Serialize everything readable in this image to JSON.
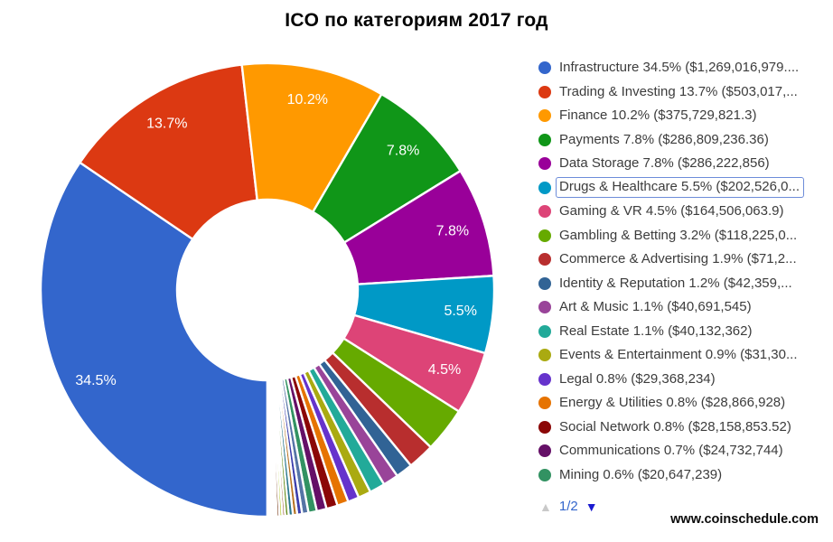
{
  "title": "ICO по категориям 2017 год",
  "chart_data": {
    "type": "pie",
    "donut": true,
    "start_angle_deg": 180,
    "direction": "clockwise",
    "slice_label_min_pct": 4.0,
    "slice_label_color": "#ffffff",
    "slices": [
      {
        "name": "Infrastructure",
        "pct": 34.5,
        "amount": "$1,269,016,979....",
        "legend_text": "Infrastructure 34.5% ($1,269,016,979....",
        "color": "#3366CC",
        "selected": false
      },
      {
        "name": "Trading & Investing",
        "pct": 13.7,
        "amount": "$503,017,...",
        "legend_text": "Trading & Investing 13.7% ($503,017,...",
        "color": "#DC3912",
        "selected": false
      },
      {
        "name": "Finance",
        "pct": 10.2,
        "amount": "$375,729,821.3",
        "legend_text": "Finance 10.2% ($375,729,821.3)",
        "color": "#FF9900",
        "selected": false
      },
      {
        "name": "Payments",
        "pct": 7.8,
        "amount": "$286,809,236.36",
        "legend_text": "Payments 7.8% ($286,809,236.36)",
        "color": "#109618",
        "selected": false
      },
      {
        "name": "Data Storage",
        "pct": 7.8,
        "amount": "$286,222,856",
        "legend_text": "Data Storage 7.8% ($286,222,856)",
        "color": "#990099",
        "selected": false
      },
      {
        "name": "Drugs & Healthcare",
        "pct": 5.5,
        "amount": "$202,526,0...",
        "legend_text": "Drugs & Healthcare 5.5% ($202,526,0...",
        "color": "#0099C6",
        "selected": true
      },
      {
        "name": "Gaming & VR",
        "pct": 4.5,
        "amount": "$164,506,063.9",
        "legend_text": "Gaming & VR 4.5% ($164,506,063.9)",
        "color": "#DD4477",
        "selected": false
      },
      {
        "name": "Gambling & Betting",
        "pct": 3.2,
        "amount": "$118,225,0...",
        "legend_text": "Gambling & Betting 3.2% ($118,225,0...",
        "color": "#66AA00",
        "selected": false
      },
      {
        "name": "Commerce & Advertising",
        "pct": 1.9,
        "amount": "$71,2...",
        "legend_text": "Commerce & Advertising 1.9% ($71,2...",
        "color": "#B82E2E",
        "selected": false
      },
      {
        "name": "Identity & Reputation",
        "pct": 1.2,
        "amount": "$42,359,...",
        "legend_text": "Identity & Reputation 1.2% ($42,359,...",
        "color": "#316395",
        "selected": false
      },
      {
        "name": "Art & Music",
        "pct": 1.1,
        "amount": "$40,691,545",
        "legend_text": "Art & Music 1.1% ($40,691,545)",
        "color": "#994499",
        "selected": false
      },
      {
        "name": "Real Estate",
        "pct": 1.1,
        "amount": "$40,132,362",
        "legend_text": "Real Estate 1.1% ($40,132,362)",
        "color": "#22AA99",
        "selected": false
      },
      {
        "name": "Events & Entertainment",
        "pct": 0.9,
        "amount": "$31,30...",
        "legend_text": "Events & Entertainment 0.9% ($31,30...",
        "color": "#AAAA11",
        "selected": false
      },
      {
        "name": "Legal",
        "pct": 0.8,
        "amount": "$29,368,234",
        "legend_text": "Legal 0.8% ($29,368,234)",
        "color": "#6633CC",
        "selected": false
      },
      {
        "name": "Energy & Utilities",
        "pct": 0.8,
        "amount": "$28,866,928",
        "legend_text": "Energy & Utilities 0.8% ($28,866,928)",
        "color": "#E67300",
        "selected": false
      },
      {
        "name": "Social Network",
        "pct": 0.8,
        "amount": "$28,158,853.52",
        "legend_text": "Social Network 0.8% ($28,158,853.52)",
        "color": "#8B0707",
        "selected": false
      },
      {
        "name": "Communications",
        "pct": 0.7,
        "amount": "$24,732,744",
        "legend_text": "Communications 0.7% ($24,732,744)",
        "color": "#651067",
        "selected": false
      },
      {
        "name": "Mining",
        "pct": 0.6,
        "amount": "$20,647,239",
        "legend_text": "Mining 0.6% ($20,647,239)",
        "color": "#329262",
        "selected": false
      }
    ],
    "unlabeled_small_slices": [
      {
        "pct": 0.45,
        "color": "#5574A6"
      },
      {
        "pct": 0.35,
        "color": "#3B3EAC"
      },
      {
        "pct": 0.3,
        "color": "#B77322"
      },
      {
        "pct": 0.3,
        "color": "#2A778D"
      },
      {
        "pct": 0.25,
        "color": "#668D1C"
      },
      {
        "pct": 0.2,
        "color": "#9C5935"
      },
      {
        "pct": 0.2,
        "color": "#A9C413"
      },
      {
        "pct": 0.2,
        "color": "#743411"
      },
      {
        "pct": 0.15,
        "color": "#B91383"
      },
      {
        "pct": 0.15,
        "color": "#F4359E"
      },
      {
        "pct": 0.15,
        "color": "#16D620"
      },
      {
        "pct": 0.1,
        "color": "#0C5922"
      },
      {
        "pct": 0.1,
        "color": "#BEA413"
      }
    ]
  },
  "legend": {
    "pagination": {
      "label": "1/2",
      "label_color": "#3366CC",
      "up_icon_glyph": "▲",
      "up_icon_color": "#c9c9c9",
      "down_icon_glyph": "▼",
      "down_icon_color": "#1a1ad0"
    }
  },
  "footer": {
    "site": "www.coinschedule.com"
  }
}
